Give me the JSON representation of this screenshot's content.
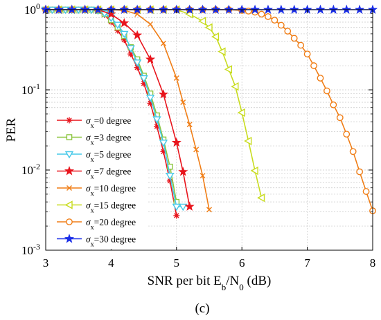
{
  "caption": "(c)",
  "chart_data": {
    "type": "line",
    "title": "",
    "xlabel": "SNR per bit E_b/N_0 (dB)",
    "xlabel_parts": {
      "main": "SNR per bit E",
      "sub1": "b",
      "mid": "/N",
      "sub2": "0",
      "tail": " (dB)"
    },
    "ylabel": "PER",
    "x_scale": "linear",
    "y_scale": "log",
    "xlim": [
      3,
      8
    ],
    "ylim": [
      0.001,
      1
    ],
    "grid": true,
    "legend_position": "center-left",
    "x_ticks": [
      {
        "value": 3,
        "label": "3"
      },
      {
        "value": 4,
        "label": "4"
      },
      {
        "value": 5,
        "label": "5"
      },
      {
        "value": 6,
        "label": "6"
      },
      {
        "value": 7,
        "label": "7"
      },
      {
        "value": 8,
        "label": "8"
      }
    ],
    "y_ticks": [
      {
        "value": 1,
        "base": "10",
        "exp": "0"
      },
      {
        "value": 0.1,
        "base": "10",
        "exp": "-1"
      },
      {
        "value": 0.01,
        "base": "10",
        "exp": "-2"
      },
      {
        "value": 0.001,
        "base": "10",
        "exp": "-3"
      }
    ],
    "series": [
      {
        "name": "σx=0 degree",
        "sym": "σ",
        "sub": "x",
        "rest": "=0 degree",
        "color": "#e8141c",
        "marker": "asterisk",
        "x": [
          3.0,
          3.1,
          3.2,
          3.3,
          3.4,
          3.5,
          3.6,
          3.7,
          3.8,
          3.9,
          4.0,
          4.1,
          4.2,
          4.3,
          4.4,
          4.5,
          4.6,
          4.7,
          4.8,
          4.9,
          5.0
        ],
        "y": [
          1.0,
          1.0,
          1.0,
          1.0,
          1.0,
          1.0,
          1.0,
          1.0,
          0.96,
          0.86,
          0.7,
          0.55,
          0.42,
          0.28,
          0.19,
          0.12,
          0.068,
          0.035,
          0.017,
          0.0073,
          0.0027
        ]
      },
      {
        "name": "σx=3 degree",
        "sym": "σ",
        "sub": "x",
        "rest": "=3 degree",
        "color": "#8cc63f",
        "marker": "square",
        "x": [
          3.0,
          3.1,
          3.2,
          3.3,
          3.4,
          3.5,
          3.6,
          3.7,
          3.8,
          3.9,
          4.0,
          4.1,
          4.2,
          4.3,
          4.4,
          4.5,
          4.6,
          4.7,
          4.8,
          4.9,
          5.0
        ],
        "y": [
          1.0,
          1.0,
          1.0,
          1.0,
          1.0,
          1.0,
          1.0,
          1.0,
          0.97,
          0.88,
          0.74,
          0.6,
          0.47,
          0.34,
          0.24,
          0.15,
          0.09,
          0.048,
          0.024,
          0.011,
          0.004
        ]
      },
      {
        "name": "σx=5 degree",
        "sym": "σ",
        "sub": "x",
        "rest": "=5 degree",
        "color": "#45c8e8",
        "marker": "triangle-down",
        "x": [
          3.0,
          3.1,
          3.2,
          3.3,
          3.4,
          3.5,
          3.6,
          3.7,
          3.8,
          3.9,
          4.0,
          4.1,
          4.2,
          4.3,
          4.4,
          4.5,
          4.6,
          4.7,
          4.8,
          4.9,
          5.0,
          5.1
        ],
        "y": [
          1.0,
          1.0,
          1.0,
          1.0,
          1.0,
          1.0,
          1.0,
          1.0,
          0.98,
          0.9,
          0.79,
          0.65,
          0.5,
          0.33,
          0.22,
          0.14,
          0.08,
          0.043,
          0.022,
          0.0085,
          0.0035,
          0.0035
        ]
      },
      {
        "name": "σx=7 degree",
        "sym": "σ",
        "sub": "x",
        "rest": "=7 degree",
        "color": "#e8141c",
        "marker": "star",
        "x": [
          3.0,
          3.2,
          3.4,
          3.6,
          3.8,
          4.0,
          4.2,
          4.4,
          4.6,
          4.8,
          5.0,
          5.1,
          5.2
        ],
        "y": [
          1.0,
          1.0,
          1.0,
          1.0,
          1.0,
          0.88,
          0.68,
          0.48,
          0.24,
          0.088,
          0.022,
          0.0095,
          0.0035
        ]
      },
      {
        "name": "σx=10 degree",
        "sym": "σ",
        "sub": "x",
        "rest": "=10 degree",
        "color": "#f07d15",
        "marker": "x",
        "x": [
          3.0,
          3.2,
          3.4,
          3.6,
          3.8,
          4.0,
          4.2,
          4.4,
          4.6,
          4.8,
          5.0,
          5.1,
          5.2,
          5.3,
          5.4,
          5.5
        ],
        "y": [
          1.0,
          1.0,
          1.0,
          1.0,
          1.0,
          1.0,
          0.98,
          0.88,
          0.66,
          0.38,
          0.14,
          0.07,
          0.037,
          0.018,
          0.0085,
          0.0032
        ]
      },
      {
        "name": "σx=15 degree",
        "sym": "σ",
        "sub": "x",
        "rest": "=15 degree",
        "color": "#c8dc1e",
        "marker": "triangle-left",
        "x": [
          3.0,
          3.2,
          3.4,
          3.6,
          3.8,
          4.0,
          4.2,
          4.4,
          4.6,
          4.8,
          5.0,
          5.2,
          5.4,
          5.5,
          5.6,
          5.7,
          5.8,
          5.9,
          6.0,
          6.1,
          6.2,
          6.3
        ],
        "y": [
          1.0,
          1.0,
          1.0,
          1.0,
          1.0,
          1.0,
          1.0,
          1.0,
          1.0,
          1.0,
          1.0,
          0.88,
          0.72,
          0.6,
          0.46,
          0.3,
          0.18,
          0.11,
          0.052,
          0.023,
          0.0098,
          0.0045
        ]
      },
      {
        "name": "σx=20 degree",
        "sym": "σ",
        "sub": "x",
        "rest": "=20 degree",
        "color": "#f07d15",
        "marker": "circle",
        "x": [
          3.0,
          3.2,
          3.4,
          3.6,
          3.8,
          4.0,
          4.2,
          4.4,
          4.6,
          4.8,
          5.0,
          5.2,
          5.4,
          5.6,
          5.8,
          6.0,
          6.1,
          6.2,
          6.3,
          6.4,
          6.5,
          6.6,
          6.7,
          6.8,
          6.9,
          7.0,
          7.1,
          7.2,
          7.3,
          7.4,
          7.5,
          7.6,
          7.7,
          7.8,
          7.9,
          8.0
        ],
        "y": [
          1.0,
          1.0,
          1.0,
          1.0,
          1.0,
          1.0,
          1.0,
          1.0,
          1.0,
          1.0,
          1.0,
          1.0,
          1.0,
          1.0,
          1.0,
          0.98,
          0.96,
          0.93,
          0.88,
          0.82,
          0.74,
          0.64,
          0.54,
          0.44,
          0.36,
          0.28,
          0.2,
          0.14,
          0.097,
          0.065,
          0.045,
          0.028,
          0.017,
          0.0095,
          0.0054,
          0.0031
        ]
      },
      {
        "name": "σx=30 degree",
        "sym": "σ",
        "sub": "x",
        "rest": "=30 degree",
        "color": "#1a2ee8",
        "marker": "star",
        "x": [
          3.0,
          3.2,
          3.4,
          3.6,
          3.8,
          4.0,
          4.2,
          4.4,
          4.6,
          4.8,
          5.0,
          5.2,
          5.4,
          5.6,
          5.8,
          6.0,
          6.2,
          6.4,
          6.6,
          6.8,
          7.0,
          7.2,
          7.4,
          7.6,
          7.8,
          8.0
        ],
        "y": [
          1.0,
          1.0,
          1.0,
          1.0,
          1.0,
          1.0,
          1.0,
          1.0,
          1.0,
          1.0,
          1.0,
          1.0,
          1.0,
          1.0,
          1.0,
          1.0,
          1.0,
          1.0,
          1.0,
          1.0,
          1.0,
          1.0,
          1.0,
          1.0,
          1.0,
          1.0
        ]
      }
    ]
  }
}
